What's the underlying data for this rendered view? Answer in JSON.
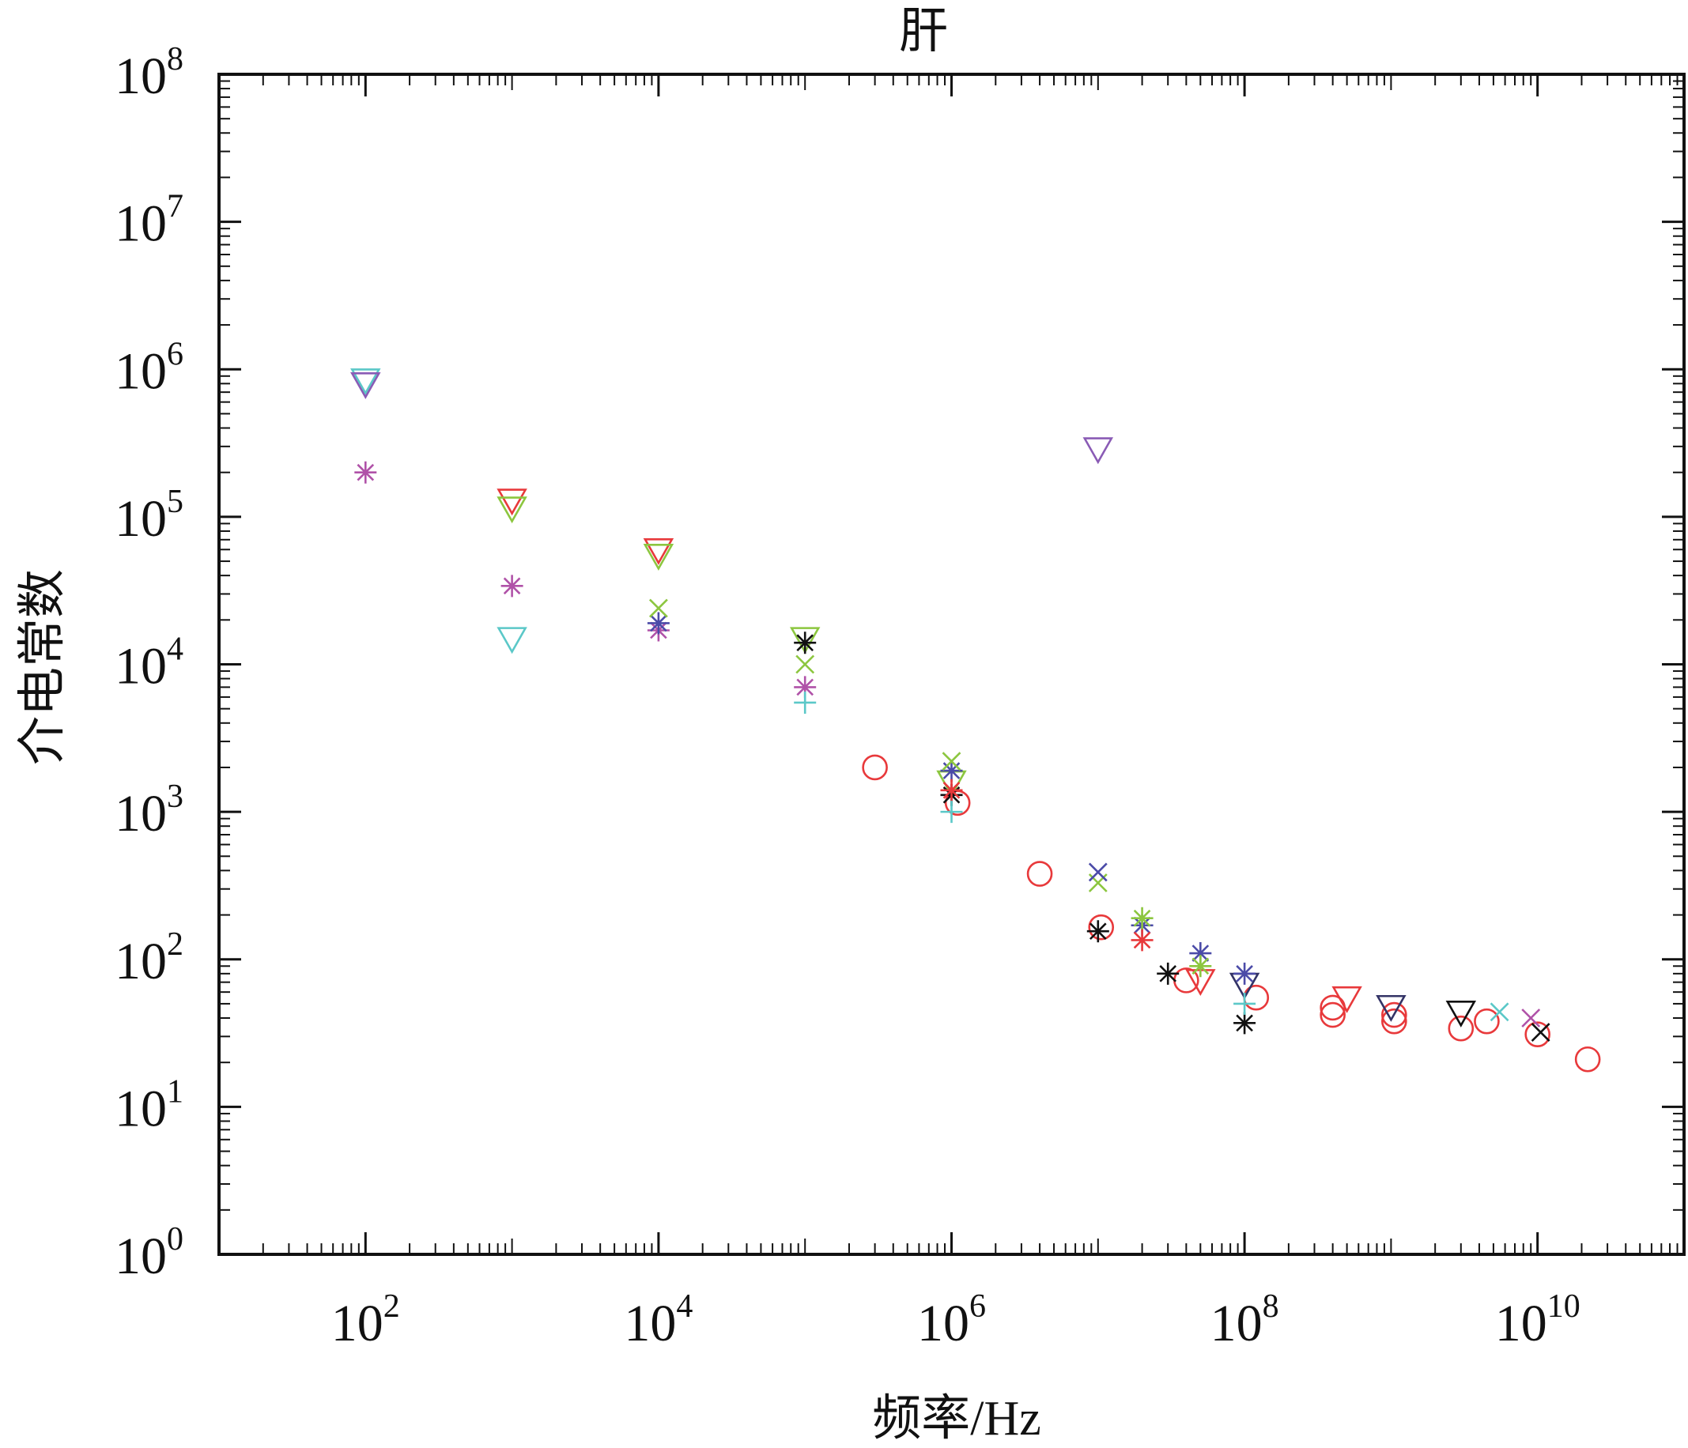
{
  "chart_data": {
    "type": "scatter",
    "title": "肝",
    "xlabel": "频率/Hz",
    "ylabel": "介电常数",
    "x_scale": "log",
    "y_scale": "log",
    "xlim": [
      10,
      100000000000
    ],
    "ylim": [
      1,
      100000000
    ],
    "x_ticks": [
      {
        "value": 100,
        "base": "10",
        "exp": "2"
      },
      {
        "value": 10000,
        "base": "10",
        "exp": "4"
      },
      {
        "value": 1000000,
        "base": "10",
        "exp": "6"
      },
      {
        "value": 100000000,
        "base": "10",
        "exp": "8"
      },
      {
        "value": 10000000000,
        "base": "10",
        "exp": "10"
      }
    ],
    "y_ticks": [
      {
        "value": 1,
        "base": "10",
        "exp": "0"
      },
      {
        "value": 10,
        "base": "10",
        "exp": "1"
      },
      {
        "value": 100,
        "base": "10",
        "exp": "2"
      },
      {
        "value": 1000,
        "base": "10",
        "exp": "3"
      },
      {
        "value": 10000,
        "base": "10",
        "exp": "4"
      },
      {
        "value": 100000,
        "base": "10",
        "exp": "5"
      },
      {
        "value": 1000000,
        "base": "10",
        "exp": "6"
      },
      {
        "value": 10000000,
        "base": "10",
        "exp": "7"
      },
      {
        "value": 100000000,
        "base": "10",
        "exp": "8"
      }
    ],
    "grid": false,
    "legend": "none",
    "series": [
      {
        "marker": "circle",
        "color": "#e8393b",
        "points": [
          [
            300000.0,
            2000
          ],
          [
            1100000.0,
            1150
          ],
          [
            4000000.0,
            380
          ],
          [
            10500000.0,
            165
          ],
          [
            40000000.0,
            72
          ],
          [
            120000000.0,
            55
          ],
          [
            400000000.0,
            47
          ],
          [
            400000000.0,
            42
          ],
          [
            1050000000.0,
            42
          ],
          [
            1050000000.0,
            38
          ],
          [
            3000000000.0,
            34
          ],
          [
            4500000000.0,
            38
          ],
          [
            10000000000.0,
            31
          ],
          [
            22000000000.0,
            21
          ]
        ]
      },
      {
        "marker": "triangle-down",
        "color": "#e8393b",
        "points": [
          [
            1000.0,
            130000
          ],
          [
            10000.0,
            60000
          ],
          [
            50000000.0,
            72
          ],
          [
            500000000.0,
            55
          ]
        ]
      },
      {
        "marker": "triangle-down",
        "color": "#8cc63f",
        "points": [
          [
            1000.0,
            115000
          ],
          [
            10000.0,
            55000
          ],
          [
            100000.0,
            15000
          ],
          [
            1000000.0,
            1600
          ]
        ]
      },
      {
        "marker": "triangle-down",
        "color": "#5bc8c8",
        "points": [
          [
            100,
            850000
          ],
          [
            1000.0,
            15000
          ]
        ]
      },
      {
        "marker": "triangle-down",
        "color": "#8a5bb5",
        "points": [
          [
            100,
            800000
          ],
          [
            10000000.0,
            290000
          ]
        ]
      },
      {
        "marker": "triangle-down",
        "color": "#333366",
        "points": [
          [
            100000000.0,
            68
          ],
          [
            1000000000.0,
            48
          ]
        ]
      },
      {
        "marker": "triangle-down",
        "color": "#111111",
        "points": [
          [
            3000000000.0,
            44
          ]
        ]
      },
      {
        "marker": "asterisk",
        "color": "#b052a8",
        "points": [
          [
            100,
            200000
          ],
          [
            1000.0,
            34000
          ],
          [
            10000.0,
            17000
          ],
          [
            100000.0,
            7000
          ]
        ]
      },
      {
        "marker": "asterisk",
        "color": "#4b4ba8",
        "points": [
          [
            10000.0,
            19000
          ],
          [
            1000000.0,
            1900
          ],
          [
            20000000.0,
            170
          ],
          [
            50000000.0,
            110
          ],
          [
            100000000.0,
            80
          ]
        ]
      },
      {
        "marker": "asterisk",
        "color": "#111111",
        "points": [
          [
            100000.0,
            14000
          ],
          [
            1000000.0,
            1300
          ],
          [
            10000000.0,
            155
          ],
          [
            30000000.0,
            80
          ],
          [
            100000000.0,
            37
          ]
        ]
      },
      {
        "marker": "asterisk",
        "color": "#e8393b",
        "points": [
          [
            1000000.0,
            1400
          ],
          [
            20000000.0,
            135
          ]
        ]
      },
      {
        "marker": "asterisk",
        "color": "#8cc63f",
        "points": [
          [
            20000000.0,
            190
          ],
          [
            50000000.0,
            90
          ]
        ]
      },
      {
        "marker": "plus",
        "color": "#5bc8c8",
        "points": [
          [
            100000.0,
            5500
          ],
          [
            1000000.0,
            1000
          ],
          [
            100000000.0,
            50
          ]
        ]
      },
      {
        "marker": "cross",
        "color": "#8cc63f",
        "points": [
          [
            10000.0,
            24000
          ],
          [
            100000.0,
            10000
          ],
          [
            1000000.0,
            2200
          ],
          [
            10000000.0,
            330
          ]
        ]
      },
      {
        "marker": "cross",
        "color": "#4b4ba8",
        "points": [
          [
            10000000.0,
            390
          ]
        ]
      },
      {
        "marker": "cross",
        "color": "#b052a8",
        "points": [
          [
            9000000000.0,
            40
          ]
        ]
      },
      {
        "marker": "cross",
        "color": "#5bc8c8",
        "points": [
          [
            5500000000.0,
            44
          ]
        ]
      },
      {
        "marker": "cross",
        "color": "#111111",
        "points": [
          [
            10500000000.0,
            32
          ]
        ]
      }
    ]
  }
}
